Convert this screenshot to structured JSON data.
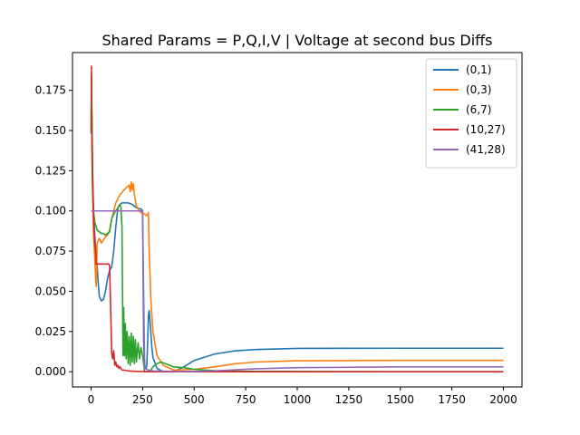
{
  "chart_data": {
    "type": "line",
    "title": "Shared Params =  P,Q,I,V | Voltage at second bus Diffs",
    "xlabel": "",
    "ylabel": "",
    "xlim": [
      -90,
      2090
    ],
    "ylim": [
      -0.0095,
      0.1985
    ],
    "x_ticks": [
      0,
      250,
      500,
      750,
      1000,
      1250,
      1500,
      1750,
      2000
    ],
    "y_ticks": [
      0.0,
      0.025,
      0.05,
      0.075,
      0.1,
      0.125,
      0.15,
      0.175
    ],
    "grid": false,
    "legend_position": "top-right",
    "series": [
      {
        "name": "(0,1)",
        "color": "#1f77b4",
        "x": [
          0,
          2,
          5,
          8,
          12,
          18,
          25,
          30,
          35,
          40,
          50,
          60,
          70,
          80,
          90,
          100,
          110,
          120,
          130,
          140,
          150,
          160,
          180,
          200,
          220,
          245,
          250,
          255,
          258,
          262,
          265,
          270,
          275,
          278,
          282,
          288,
          295,
          300,
          320,
          350,
          400,
          450,
          500,
          600,
          700,
          800,
          1000,
          1500,
          2000
        ],
        "y": [
          0.148,
          0.178,
          0.15,
          0.12,
          0.1,
          0.085,
          0.072,
          0.065,
          0.055,
          0.047,
          0.044,
          0.045,
          0.05,
          0.058,
          0.063,
          0.065,
          0.075,
          0.09,
          0.102,
          0.104,
          0.105,
          0.105,
          0.105,
          0.104,
          0.102,
          0.101,
          0.1,
          0.02,
          0.008,
          0.003,
          0.002,
          0.003,
          0.02,
          0.035,
          0.038,
          0.028,
          0.015,
          0.009,
          0.002,
          0.0,
          0.0,
          0.003,
          0.007,
          0.011,
          0.013,
          0.0138,
          0.0145,
          0.0146,
          0.0146
        ]
      },
      {
        "name": "(0,3)",
        "color": "#ff7f0e",
        "x": [
          0,
          2,
          5,
          8,
          12,
          18,
          22,
          25,
          30,
          40,
          50,
          60,
          70,
          80,
          90,
          100,
          120,
          140,
          160,
          175,
          185,
          190,
          195,
          200,
          205,
          210,
          220,
          240,
          260,
          270,
          275,
          278,
          282,
          290,
          300,
          320,
          350,
          400,
          500,
          600,
          700,
          800,
          1000,
          1500,
          2000
        ],
        "y": [
          0.15,
          0.182,
          0.14,
          0.11,
          0.085,
          0.07,
          0.058,
          0.053,
          0.08,
          0.083,
          0.08,
          0.082,
          0.084,
          0.085,
          0.088,
          0.095,
          0.105,
          0.11,
          0.113,
          0.115,
          0.116,
          0.112,
          0.118,
          0.113,
          0.117,
          0.11,
          0.103,
          0.099,
          0.098,
          0.097,
          0.098,
          0.099,
          0.075,
          0.045,
          0.025,
          0.01,
          0.004,
          0.001,
          0.0015,
          0.003,
          0.005,
          0.006,
          0.0068,
          0.007,
          0.007
        ]
      },
      {
        "name": "(6,7)",
        "color": "#2ca02c",
        "x": [
          0,
          2,
          5,
          8,
          12,
          18,
          25,
          30,
          40,
          50,
          60,
          70,
          80,
          90,
          100,
          110,
          120,
          130,
          140,
          145,
          150,
          155,
          158,
          162,
          166,
          170,
          175,
          180,
          185,
          190,
          195,
          200,
          205,
          210,
          215,
          220,
          228,
          235,
          242,
          250,
          260,
          270,
          280,
          290,
          300,
          320,
          340,
          360,
          380,
          400,
          450,
          500,
          600,
          700,
          800,
          1000,
          1500,
          2000
        ],
        "y": [
          0.15,
          0.185,
          0.13,
          0.11,
          0.1,
          0.093,
          0.09,
          0.088,
          0.087,
          0.086,
          0.086,
          0.085,
          0.086,
          0.087,
          0.095,
          0.098,
          0.1,
          0.102,
          0.104,
          0.102,
          0.09,
          0.01,
          0.04,
          0.01,
          0.03,
          0.008,
          0.025,
          0.005,
          0.022,
          0.004,
          0.024,
          0.006,
          0.022,
          0.005,
          0.02,
          0.006,
          0.018,
          0.008,
          0.015,
          0.01,
          0.0,
          0.0,
          0.0,
          0.001,
          0.003,
          0.005,
          0.006,
          0.005,
          0.004,
          0.003,
          0.0025,
          0.0015,
          0.0006,
          0.0003,
          0.0002,
          0.0001,
          0.0,
          0.0
        ]
      },
      {
        "name": "(10,27)",
        "color": "#d62728",
        "x": [
          0,
          2,
          5,
          8,
          12,
          18,
          22,
          25,
          30,
          40,
          50,
          60,
          70,
          80,
          85,
          90,
          95,
          100,
          105,
          110,
          115,
          120,
          125,
          130,
          135,
          140,
          150,
          160,
          180,
          200,
          220,
          250,
          300,
          350,
          400,
          500,
          700,
          1000,
          1500,
          2000
        ],
        "y": [
          0.19,
          0.19,
          0.14,
          0.12,
          0.095,
          0.08,
          0.075,
          0.067,
          0.067,
          0.067,
          0.067,
          0.067,
          0.067,
          0.067,
          0.067,
          0.066,
          0.04,
          0.012,
          0.008,
          0.013,
          0.004,
          0.006,
          0.003,
          0.004,
          0.002,
          0.003,
          0.001,
          0.001,
          0.0005,
          0.0003,
          0.0002,
          0.0001,
          0.0,
          0.0,
          0.0,
          0.0,
          0.0,
          0.0,
          0.0,
          0.0
        ]
      },
      {
        "name": "(41,28)",
        "color": "#9467bd",
        "x": [
          0,
          50,
          100,
          150,
          200,
          240,
          245,
          250,
          260,
          280,
          300,
          350,
          400,
          500,
          600,
          700,
          800,
          1000,
          1500,
          2000
        ],
        "y": [
          0.1,
          0.1,
          0.1,
          0.1,
          0.1,
          0.1,
          0.1,
          0.099,
          0.002,
          0.001,
          0.0005,
          0.0003,
          0.0002,
          0.0002,
          0.0005,
          0.0012,
          0.0018,
          0.0025,
          0.003,
          0.003
        ]
      }
    ]
  }
}
